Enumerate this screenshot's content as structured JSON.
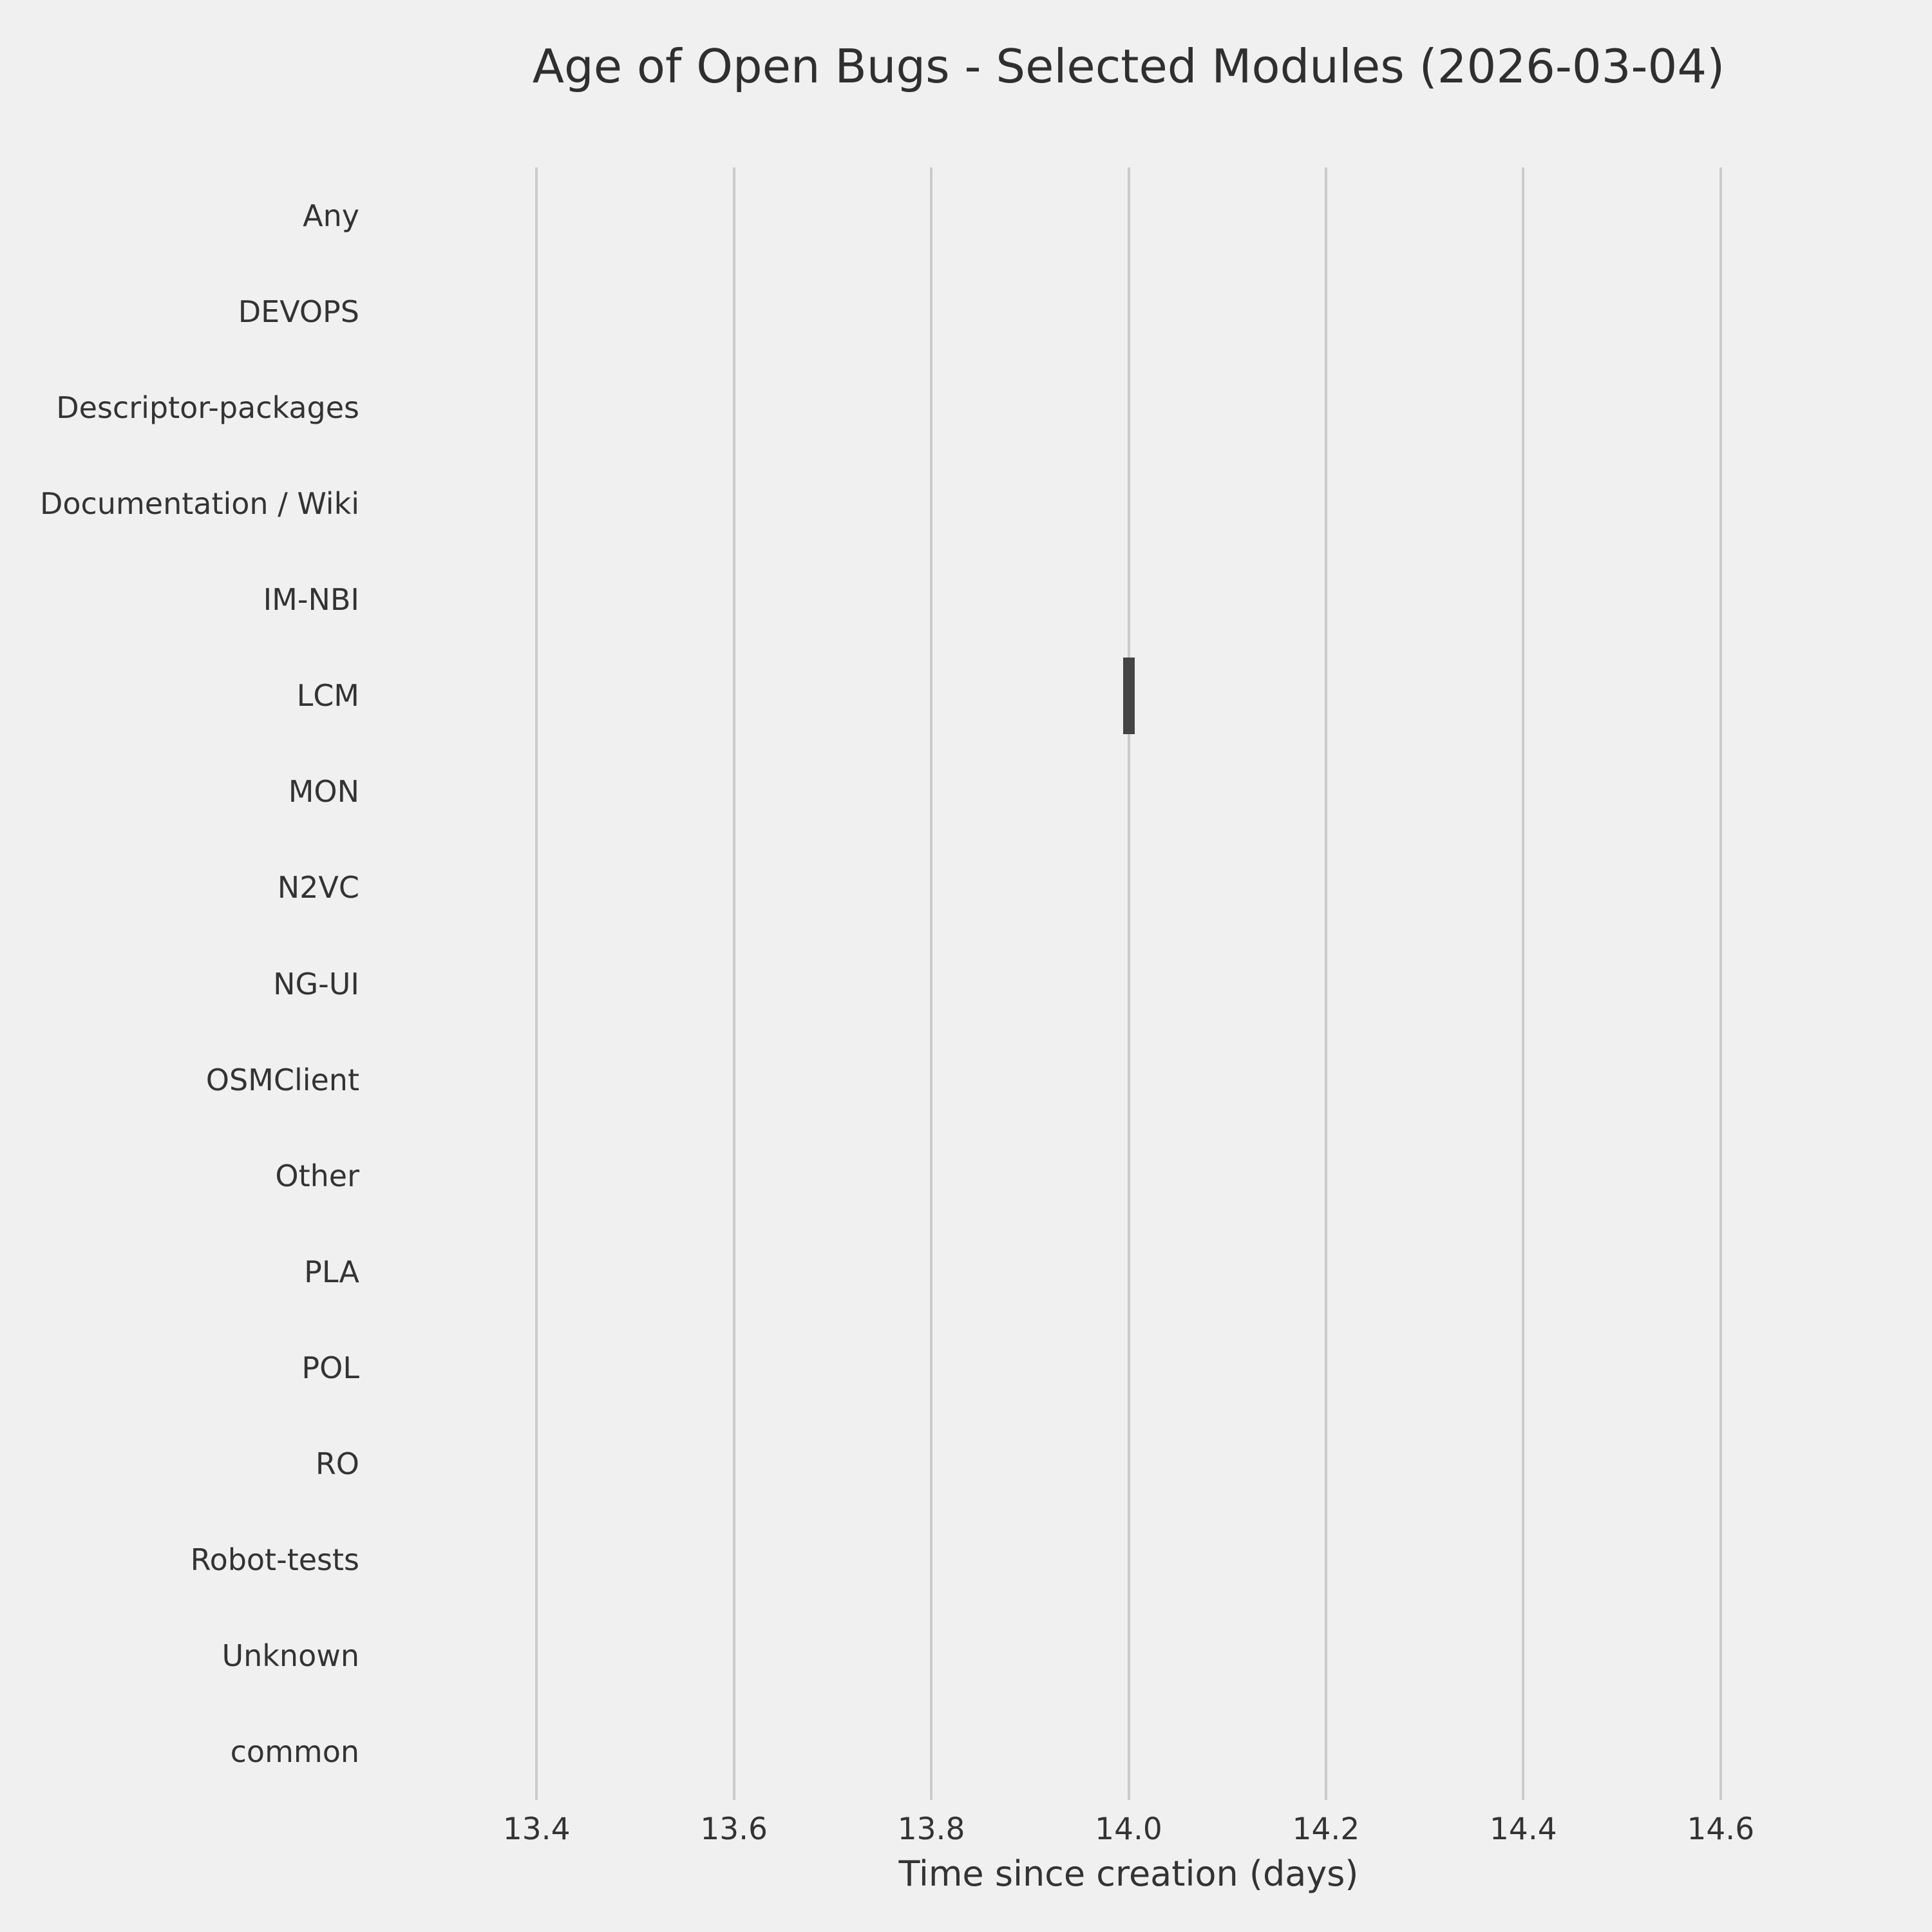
{
  "figure": {
    "title": "Age of Open Bugs - Selected Modules (2026-03-04)"
  },
  "colors": {
    "background": "#f0f0f0",
    "grid": "#cbcbcb",
    "box": "#444444",
    "text": "#333333",
    "title_text": "#2f2f2f"
  },
  "chart_data": {
    "type": "box",
    "orientation": "horizontal",
    "title": "Age of Open Bugs - Selected Modules (2026-03-04)",
    "xlabel": "Time since creation (days)",
    "ylabel": "",
    "grid": "vertical-only",
    "legend": "none",
    "categories": [
      "Any",
      "DEVOPS",
      "Descriptor-packages",
      "Documentation / Wiki",
      "IM-NBI",
      "LCM",
      "MON",
      "N2VC",
      "NG-UI",
      "OSMClient",
      "Other",
      "PLA",
      "POL",
      "RO",
      "Robot-tests",
      "Unknown",
      "common"
    ],
    "xlim": [
      13.3,
      14.7
    ],
    "x_tick_values": [
      13.4,
      13.6,
      13.8,
      14.0,
      14.2,
      14.4,
      14.6
    ],
    "x_tick_labels": [
      "13.4",
      "13.6",
      "13.8",
      "14.0",
      "14.2",
      "14.4",
      "14.6"
    ],
    "boxes": [
      {
        "category": "LCM",
        "min_days": 14.0,
        "q1_days": 14.0,
        "median_days": 14.0,
        "q3_days": 14.0,
        "max_days": 14.0
      }
    ]
  }
}
